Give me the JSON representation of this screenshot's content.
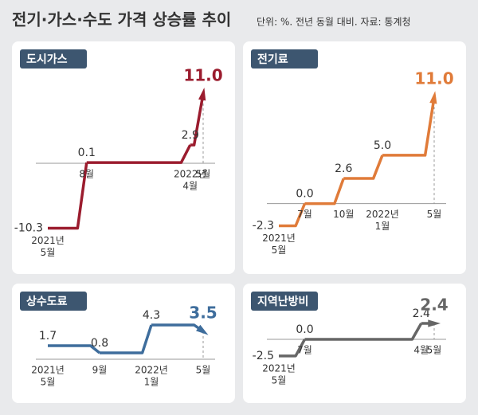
{
  "title": "전기·가스·수도 가격 상승률 추이",
  "subtitle": "단위: %. 전년 동월 대비. 자료: 통계청",
  "chart_data": [
    {
      "type": "line",
      "title": "도시가스",
      "color": "#9b1c2e",
      "categories": [
        [
          "2021년",
          "5월"
        ],
        null,
        null,
        [
          "8월"
        ],
        null,
        null,
        null,
        null,
        null,
        null,
        null,
        [
          "2022년",
          "4월"
        ],
        [
          "5월"
        ]
      ],
      "values": [
        -10.3,
        null,
        null,
        0.1,
        null,
        null,
        null,
        null,
        null,
        null,
        null,
        2.9,
        11.0
      ],
      "value_labels": [
        "-10.3",
        null,
        null,
        "0.1",
        null,
        null,
        null,
        null,
        null,
        null,
        null,
        "2.9",
        "11.0"
      ],
      "ylim": [
        -11,
        12
      ]
    },
    {
      "type": "line",
      "title": "전기료",
      "color": "#e07b39",
      "categories": [
        [
          "2021년",
          "5월"
        ],
        null,
        [
          "7월"
        ],
        null,
        null,
        [
          "10월"
        ],
        null,
        null,
        [
          "2022년",
          "1월"
        ],
        null,
        null,
        null,
        [
          "5월"
        ]
      ],
      "values": [
        -2.3,
        null,
        0.0,
        null,
        null,
        2.6,
        null,
        null,
        5.0,
        null,
        null,
        null,
        11.0
      ],
      "value_labels": [
        "-2.3",
        null,
        "0.0",
        null,
        null,
        "2.6",
        null,
        null,
        "5.0",
        null,
        null,
        null,
        "11.0"
      ],
      "ylim": [
        -3,
        12
      ]
    },
    {
      "type": "line",
      "title": "상수도료",
      "color": "#3e6d9c",
      "categories": [
        [
          "2021년",
          "5월"
        ],
        null,
        null,
        null,
        [
          "9월"
        ],
        null,
        null,
        null,
        [
          "2022년",
          "1월"
        ],
        null,
        null,
        null,
        [
          "5월"
        ]
      ],
      "values": [
        1.7,
        null,
        null,
        null,
        0.8,
        null,
        null,
        null,
        4.3,
        null,
        null,
        null,
        3.5
      ],
      "value_labels": [
        "1.7",
        null,
        null,
        null,
        "0.8",
        null,
        null,
        null,
        "4.3",
        null,
        null,
        null,
        "3.5"
      ],
      "ylim": [
        0,
        5
      ]
    },
    {
      "type": "line",
      "title": "지역난방비",
      "color": "#666666",
      "categories": [
        [
          "2021년",
          "5월"
        ],
        null,
        [
          "7월"
        ],
        null,
        null,
        null,
        null,
        null,
        null,
        null,
        null,
        [
          "4월"
        ],
        [
          "5월"
        ]
      ],
      "values": [
        -2.5,
        null,
        0.0,
        null,
        null,
        null,
        null,
        null,
        null,
        null,
        null,
        2.4,
        2.4
      ],
      "value_labels": [
        "-2.5",
        null,
        "0.0",
        null,
        null,
        null,
        null,
        null,
        null,
        null,
        null,
        "2.4",
        "2.4"
      ],
      "ylim": [
        -3,
        3
      ]
    }
  ]
}
